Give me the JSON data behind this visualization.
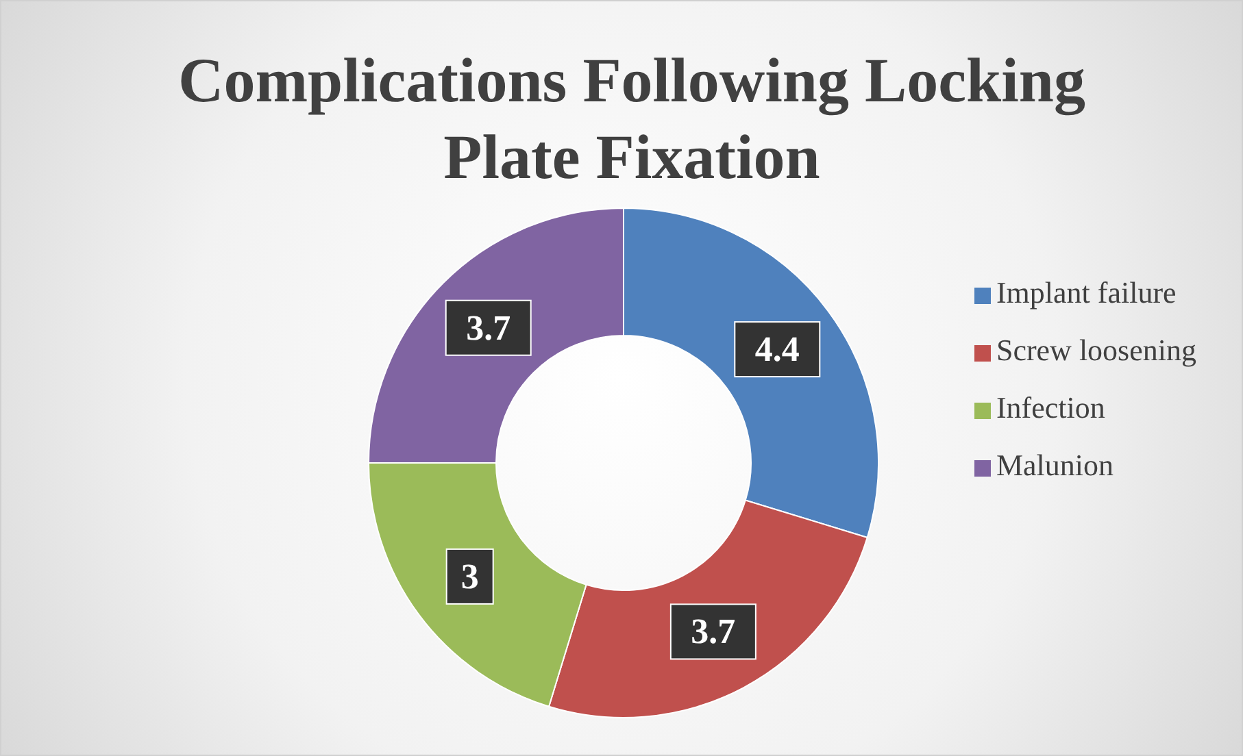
{
  "chart_data": {
    "type": "donut",
    "title": "Complications Following Locking Plate Fixation",
    "categories": [
      "Implant failure",
      "Screw loosening",
      "Infection",
      "Malunion"
    ],
    "values": [
      4.4,
      3.7,
      3,
      3.7
    ],
    "colors": [
      "#4f81bd",
      "#c0504d",
      "#9bbb59",
      "#8064a2"
    ],
    "data_labels": true,
    "legend": "right"
  }
}
